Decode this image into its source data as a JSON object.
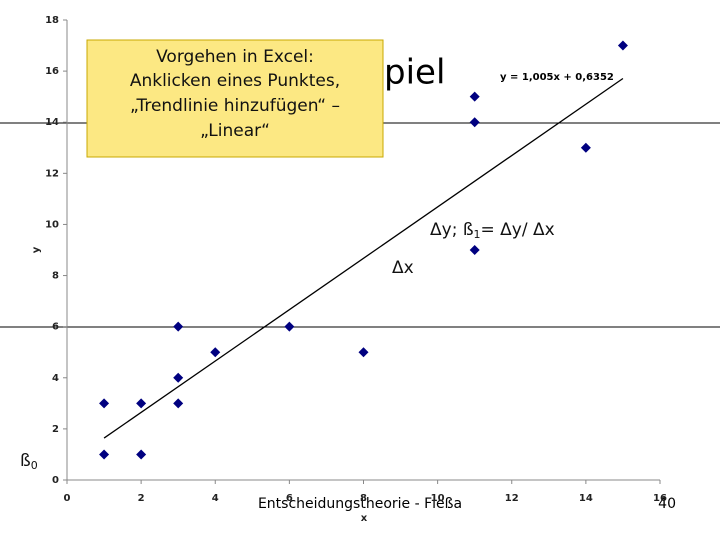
{
  "chart_data": {
    "type": "scatter",
    "x": [
      1,
      1,
      2,
      2,
      3,
      3,
      3,
      4,
      6,
      8,
      11,
      11,
      11,
      14,
      15
    ],
    "y": [
      3,
      1,
      3,
      1,
      6,
      4,
      3,
      5,
      6,
      5,
      15,
      14,
      9,
      13,
      17
    ],
    "color": "#000080",
    "xlim": [
      0,
      16
    ],
    "ylim": [
      0,
      18
    ],
    "xticks": [
      0,
      2,
      4,
      6,
      8,
      10,
      12,
      14,
      16
    ],
    "yticks": [
      0,
      2,
      4,
      6,
      8,
      10,
      12,
      14,
      16,
      18
    ],
    "x_label": "x",
    "y_label": "y",
    "trendline": {
      "label": "y = 1,005x + 0,6352",
      "slope": 1.005,
      "intercept": 0.6352,
      "color": "#000000"
    }
  },
  "slide": {
    "title_fragment": "piel",
    "callout": [
      "Vorgehen in Excel:",
      "Anklicken eines Punktes,",
      "„Trendlinie hinzufügen“ –",
      "„Linear“"
    ],
    "slope_note": {
      "text": "Δy; ß",
      "sub": "1",
      "rest": "= Δy/ Δx"
    },
    "dx_note": "Δx",
    "intercept_note": {
      "text": "ß",
      "sub": "0"
    },
    "footer": "Entscheidungstheorie - Fleßa",
    "page": "40"
  }
}
